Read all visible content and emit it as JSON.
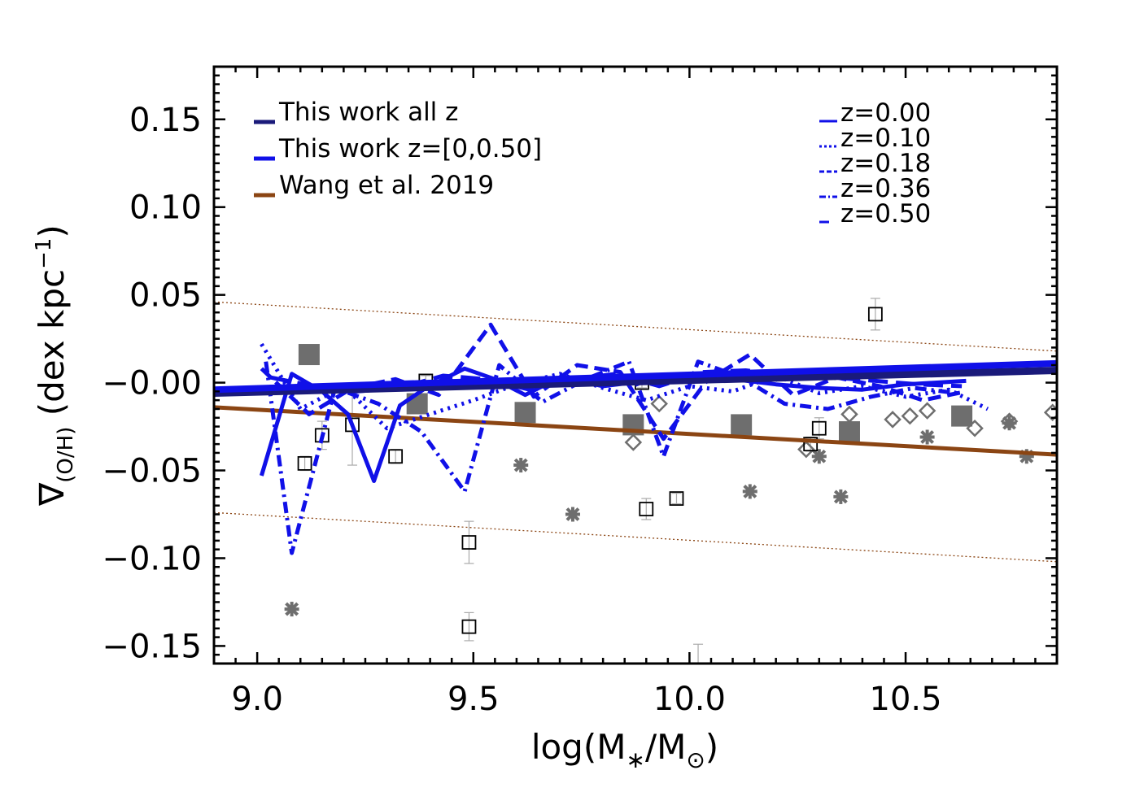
{
  "chart_data": {
    "type": "scatter",
    "xlabel": "log(M∗/M⊙)",
    "ylabel": "∇(O/H) (dex kpc−1)",
    "xlim": [
      8.9,
      10.85
    ],
    "ylim": [
      -0.16,
      0.18
    ],
    "x_ticks": [
      {
        "value": 9.0,
        "label": "9.0"
      },
      {
        "value": 9.5,
        "label": "9.5"
      },
      {
        "value": 10.0,
        "label": "10.0"
      },
      {
        "value": 10.5,
        "label": "10.5"
      }
    ],
    "y_ticks": [
      {
        "value": 0.15,
        "label": "0.15"
      },
      {
        "value": 0.1,
        "label": "0.10"
      },
      {
        "value": 0.05,
        "label": "0.05"
      },
      {
        "value": 0.0,
        "label": "−0.00"
      },
      {
        "value": -0.05,
        "label": "−0.05"
      },
      {
        "value": -0.1,
        "label": "−0.10"
      },
      {
        "value": -0.15,
        "label": "−0.15"
      }
    ],
    "legend_left": [
      {
        "label": "This work all z",
        "color": "#1a1a7a"
      },
      {
        "label": "This work z=[0,0.50]",
        "color": "#1010e8"
      },
      {
        "label": "Wang et al. 2019",
        "color": "#8b4513"
      }
    ],
    "legend_right": [
      {
        "label": "z=0.00",
        "color": "#1010e8",
        "dash": "solid"
      },
      {
        "label": "z=0.10",
        "color": "#1010e8",
        "dash": "dotted"
      },
      {
        "label": "z=0.18",
        "color": "#1010e8",
        "dash": "dashed"
      },
      {
        "label": "z=0.36",
        "color": "#1010e8",
        "dash": "dashdot"
      },
      {
        "label": "z=0.50",
        "color": "#1010e8",
        "dash": "longdash"
      }
    ],
    "fits": [
      {
        "name": "This work all z",
        "color": "#1a1a7a",
        "points": [
          [
            8.9,
            -0.006
          ],
          [
            10.85,
            0.007
          ]
        ]
      },
      {
        "name": "This work z=[0,0.50]",
        "color": "#1010e8",
        "points": [
          [
            8.9,
            -0.004
          ],
          [
            10.85,
            0.011
          ]
        ]
      },
      {
        "name": "Wang et al. 2019",
        "color": "#8b4513",
        "points": [
          [
            8.9,
            -0.014
          ],
          [
            10.85,
            -0.041
          ]
        ]
      },
      {
        "name": "Wang et al. 2019 upper",
        "color": "#8b4513",
        "dotted": true,
        "points": [
          [
            8.9,
            0.046
          ],
          [
            10.85,
            0.018
          ]
        ]
      },
      {
        "name": "Wang et al. 2019 lower",
        "color": "#8b4513",
        "dotted": true,
        "points": [
          [
            8.9,
            -0.074
          ],
          [
            10.85,
            -0.102
          ]
        ]
      }
    ],
    "series": [
      {
        "name": "z=0.00",
        "color": "#1010e8",
        "dash": "solid",
        "x": [
          9.01,
          9.08,
          9.15,
          9.21,
          9.27,
          9.33,
          9.39,
          9.48,
          9.55,
          9.62,
          9.7,
          9.8,
          9.9,
          10.0,
          10.1,
          10.2,
          10.3,
          10.4,
          10.5,
          10.64
        ],
        "y": [
          -0.053,
          0.005,
          -0.005,
          -0.018,
          -0.056,
          -0.013,
          -0.003,
          0.008,
          0.002,
          -0.007,
          0.003,
          -0.002,
          0.001,
          0.003,
          0.002,
          -0.001,
          -0.003,
          -0.004,
          -0.001,
          0.001
        ]
      },
      {
        "name": "z=0.10",
        "color": "#1010e8",
        "dash": "dotted",
        "x": [
          9.01,
          9.1,
          9.2,
          9.3,
          9.4,
          9.5,
          9.6,
          9.7,
          9.8,
          9.9,
          10.0,
          10.1,
          10.2,
          10.3,
          10.4,
          10.5,
          10.6,
          10.69
        ],
        "y": [
          0.022,
          -0.015,
          -0.002,
          -0.026,
          -0.018,
          -0.01,
          -0.001,
          0.005,
          -0.003,
          -0.01,
          -0.002,
          -0.005,
          0.004,
          -0.006,
          -0.002,
          -0.008,
          -0.004,
          -0.015
        ]
      },
      {
        "name": "z=0.18",
        "color": "#1010e8",
        "dash": "dashed",
        "x": [
          9.01,
          9.12,
          9.22,
          9.32,
          9.42,
          9.54,
          9.64,
          9.74,
          9.84,
          9.94,
          10.04,
          10.14,
          10.24,
          10.34,
          10.44,
          10.54,
          10.64
        ],
        "y": [
          0.008,
          -0.018,
          -0.003,
          0.002,
          -0.007,
          0.033,
          -0.008,
          0.01,
          0.006,
          -0.032,
          0.001,
          0.016,
          -0.007,
          0.003,
          -0.002,
          -0.01,
          -0.005
        ]
      },
      {
        "name": "z=0.36",
        "color": "#1010e8",
        "dash": "dashdot",
        "x": [
          9.02,
          9.08,
          9.18,
          9.28,
          9.38,
          9.48,
          9.56,
          9.66,
          9.76,
          9.86,
          9.94,
          10.02,
          10.12,
          10.22,
          10.32,
          10.42,
          10.52,
          10.62
        ],
        "y": [
          0.012,
          -0.097,
          -0.003,
          -0.012,
          -0.028,
          -0.062,
          0.01,
          -0.011,
          0.002,
          0.012,
          -0.042,
          0.012,
          0.003,
          -0.012,
          -0.015,
          -0.008,
          -0.003,
          -0.006
        ]
      },
      {
        "name": "z=0.50",
        "color": "#1010e8",
        "dash": "longdash",
        "x": [
          9.03,
          9.13,
          9.23,
          9.33,
          9.43,
          9.53,
          9.63,
          9.73,
          9.83,
          9.93,
          10.03,
          10.13,
          10.23,
          10.33,
          10.43,
          10.53,
          10.63
        ],
        "y": [
          0.003,
          -0.002,
          -0.005,
          -0.003,
          0.004,
          0.002,
          -0.004,
          0.002,
          0.005,
          -0.002,
          0.006,
          0.007,
          0.004,
          0.003,
          0.001,
          -0.001,
          -0.002
        ]
      }
    ],
    "points": {
      "filled_squares": [
        [
          9.12,
          0.016
        ],
        [
          9.37,
          -0.012
        ],
        [
          9.62,
          -0.017
        ],
        [
          9.87,
          -0.024
        ],
        [
          10.12,
          -0.024
        ],
        [
          10.37,
          -0.028
        ],
        [
          10.63,
          -0.019
        ]
      ],
      "open_squares": [
        {
          "x": 9.11,
          "y": -0.046,
          "err": 0.004
        },
        {
          "x": 9.15,
          "y": -0.03,
          "err": 0.008
        },
        {
          "x": 9.22,
          "y": -0.024,
          "err": 0.023
        },
        {
          "x": 9.32,
          "y": -0.042,
          "err": 0.004
        },
        {
          "x": 9.39,
          "y": 0.001,
          "err": 0.003
        },
        {
          "x": 9.49,
          "y": -0.091,
          "err": 0.012
        },
        {
          "x": 9.49,
          "y": -0.139,
          "err": 0.008
        },
        {
          "x": 9.89,
          "y": 0.0,
          "err": 0.003
        },
        {
          "x": 9.9,
          "y": -0.072,
          "err": 0.006
        },
        {
          "x": 9.97,
          "y": -0.066,
          "err": 0.003
        },
        {
          "x": 10.28,
          "y": -0.035,
          "err": 0.004
        },
        {
          "x": 10.3,
          "y": -0.026,
          "err": 0.006
        },
        {
          "x": 10.43,
          "y": 0.039,
          "err": 0.009
        }
      ],
      "asterisks": [
        [
          9.08,
          -0.129
        ],
        [
          9.61,
          -0.047
        ],
        [
          9.73,
          -0.075
        ],
        [
          10.14,
          -0.062
        ],
        [
          10.3,
          -0.042
        ],
        [
          10.35,
          -0.065
        ],
        [
          10.55,
          -0.031
        ],
        [
          10.74,
          -0.023
        ],
        [
          10.78,
          -0.042
        ]
      ],
      "diamonds": [
        [
          9.87,
          -0.034
        ],
        [
          9.93,
          -0.012
        ],
        [
          10.27,
          -0.038
        ],
        [
          10.37,
          -0.018
        ],
        [
          10.47,
          -0.021
        ],
        [
          10.51,
          -0.019
        ],
        [
          10.55,
          -0.016
        ],
        [
          10.66,
          -0.026
        ],
        [
          10.74,
          -0.022
        ],
        [
          10.84,
          -0.017
        ]
      ],
      "error_only": [
        {
          "x": 10.02,
          "y": -0.155,
          "err": 0.006
        }
      ]
    }
  }
}
